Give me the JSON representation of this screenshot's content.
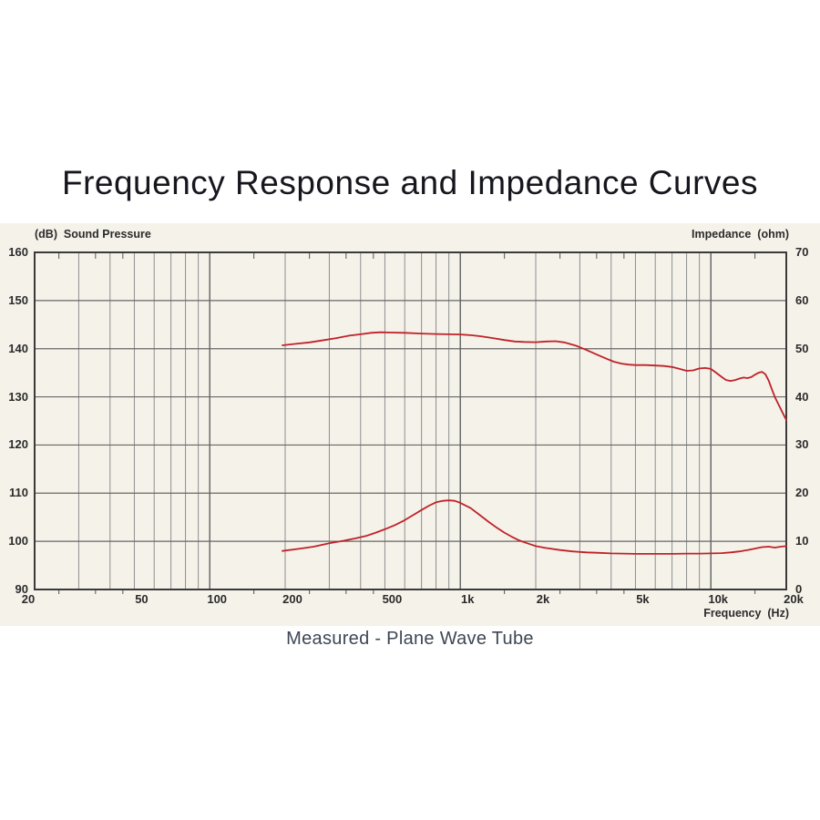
{
  "title": "Frequency Response and Impedance Curves",
  "caption": "Measured - Plane Wave Tube",
  "colors": {
    "curve_red": "#bf2228",
    "band_background": "#f5f2ea",
    "grid_minor": "#8e8e8e",
    "grid_decade": "#606060",
    "grid_horizontal": "#666666",
    "plot_border": "#3a3a3a",
    "tick_text": "#2b2b2b",
    "title_text": "#16161e",
    "caption_text": "#3d4754"
  },
  "chart_data": {
    "type": "line",
    "title": "Frequency Response and Impedance Curves",
    "subtitle": "Measured - Plane Wave Tube",
    "x_scale": "log",
    "x_axis_label": "Frequency  (Hz)",
    "x_range": [
      20,
      20000
    ],
    "x_tick_values": [
      20,
      50,
      100,
      200,
      500,
      1000,
      2000,
      5000,
      10000,
      20000
    ],
    "x_tick_labels": [
      "20",
      "50",
      "100",
      "200",
      "500",
      "1k",
      "2k",
      "5k",
      "10k",
      "20k"
    ],
    "x_gridline_values": [
      30,
      40,
      50,
      60,
      70,
      80,
      90,
      100,
      200,
      300,
      400,
      500,
      600,
      700,
      800,
      900,
      1000,
      2000,
      3000,
      4000,
      5000,
      6000,
      7000,
      8000,
      9000,
      10000
    ],
    "x_minor_tick_values": [
      25,
      35,
      45,
      150,
      250,
      350,
      450,
      1500,
      2500,
      3500,
      4500,
      15000
    ],
    "left_axis": {
      "label": "(dB)  Sound Pressure",
      "range": [
        90,
        160
      ],
      "ticks": [
        160,
        150,
        140,
        130,
        120,
        110,
        100,
        90
      ]
    },
    "right_axis": {
      "label": "Impedance  (ohm)",
      "range": [
        0,
        70
      ],
      "ticks": [
        70,
        60,
        50,
        40,
        30,
        20,
        10,
        0
      ]
    },
    "grid": true,
    "legend_position": "none",
    "series": [
      {
        "name": "Sound Pressure",
        "axis": "left",
        "unit": "dB SPL",
        "color": "#bf2228",
        "points": [
          [
            195,
            140.7
          ],
          [
            220,
            141.0
          ],
          [
            250,
            141.3
          ],
          [
            280,
            141.7
          ],
          [
            320,
            142.2
          ],
          [
            360,
            142.7
          ],
          [
            400,
            143.0
          ],
          [
            440,
            143.3
          ],
          [
            480,
            143.4
          ],
          [
            530,
            143.35
          ],
          [
            600,
            143.3
          ],
          [
            700,
            143.15
          ],
          [
            800,
            143.05
          ],
          [
            900,
            143.0
          ],
          [
            1000,
            142.95
          ],
          [
            1100,
            142.8
          ],
          [
            1200,
            142.6
          ],
          [
            1350,
            142.2
          ],
          [
            1500,
            141.8
          ],
          [
            1650,
            141.5
          ],
          [
            1800,
            141.4
          ],
          [
            2000,
            141.35
          ],
          [
            2200,
            141.5
          ],
          [
            2400,
            141.55
          ],
          [
            2600,
            141.3
          ],
          [
            2900,
            140.6
          ],
          [
            3200,
            139.7
          ],
          [
            3500,
            138.8
          ],
          [
            3800,
            138.0
          ],
          [
            4100,
            137.3
          ],
          [
            4400,
            136.9
          ],
          [
            4700,
            136.7
          ],
          [
            5000,
            136.6
          ],
          [
            5500,
            136.6
          ],
          [
            6000,
            136.5
          ],
          [
            6500,
            136.4
          ],
          [
            7000,
            136.2
          ],
          [
            7500,
            135.8
          ],
          [
            8000,
            135.4
          ],
          [
            8500,
            135.5
          ],
          [
            9000,
            135.9
          ],
          [
            9500,
            136.0
          ],
          [
            10000,
            135.8
          ],
          [
            10500,
            135.0
          ],
          [
            11000,
            134.2
          ],
          [
            11500,
            133.5
          ],
          [
            12000,
            133.3
          ],
          [
            12500,
            133.5
          ],
          [
            13000,
            133.8
          ],
          [
            13500,
            134.0
          ],
          [
            14000,
            133.9
          ],
          [
            14500,
            134.1
          ],
          [
            15000,
            134.6
          ],
          [
            15500,
            135.0
          ],
          [
            16000,
            135.2
          ],
          [
            16500,
            134.7
          ],
          [
            17000,
            133.4
          ],
          [
            17500,
            131.6
          ],
          [
            18000,
            130.0
          ],
          [
            18500,
            128.7
          ],
          [
            19000,
            127.5
          ],
          [
            19500,
            126.3
          ],
          [
            20000,
            125.2
          ]
        ]
      },
      {
        "name": "Impedance",
        "axis": "right",
        "unit": "ohm",
        "color": "#bf2228",
        "points": [
          [
            195,
            8.0
          ],
          [
            230,
            8.5
          ],
          [
            260,
            8.9
          ],
          [
            300,
            9.6
          ],
          [
            340,
            10.1
          ],
          [
            380,
            10.6
          ],
          [
            420,
            11.1
          ],
          [
            460,
            11.8
          ],
          [
            500,
            12.5
          ],
          [
            550,
            13.4
          ],
          [
            600,
            14.4
          ],
          [
            650,
            15.5
          ],
          [
            700,
            16.5
          ],
          [
            750,
            17.4
          ],
          [
            800,
            18.1
          ],
          [
            850,
            18.4
          ],
          [
            900,
            18.5
          ],
          [
            950,
            18.4
          ],
          [
            1000,
            18.0
          ],
          [
            1100,
            16.9
          ],
          [
            1200,
            15.4
          ],
          [
            1300,
            14.0
          ],
          [
            1400,
            12.8
          ],
          [
            1500,
            11.8
          ],
          [
            1600,
            11.0
          ],
          [
            1700,
            10.3
          ],
          [
            1800,
            9.8
          ],
          [
            1900,
            9.4
          ],
          [
            2000,
            9.0
          ],
          [
            2200,
            8.6
          ],
          [
            2500,
            8.2
          ],
          [
            2800,
            7.9
          ],
          [
            3200,
            7.7
          ],
          [
            3600,
            7.6
          ],
          [
            4000,
            7.5
          ],
          [
            4500,
            7.45
          ],
          [
            5000,
            7.4
          ],
          [
            6000,
            7.4
          ],
          [
            7000,
            7.4
          ],
          [
            8000,
            7.45
          ],
          [
            9000,
            7.45
          ],
          [
            10000,
            7.5
          ],
          [
            11000,
            7.55
          ],
          [
            12000,
            7.7
          ],
          [
            13000,
            7.9
          ],
          [
            14000,
            8.2
          ],
          [
            15000,
            8.5
          ],
          [
            16000,
            8.8
          ],
          [
            17000,
            8.9
          ],
          [
            17500,
            8.8
          ],
          [
            18000,
            8.7
          ],
          [
            19000,
            8.9
          ],
          [
            20000,
            9.0
          ]
        ]
      }
    ]
  }
}
